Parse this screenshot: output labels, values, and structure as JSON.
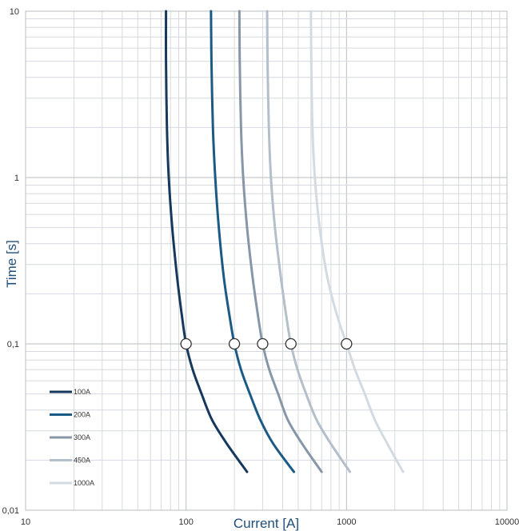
{
  "chart_data": {
    "type": "line",
    "xscale": "log",
    "yscale": "log",
    "xlabel": "Current [A]",
    "ylabel": "Time [s]",
    "xlim": [
      10,
      10000
    ],
    "ylim": [
      0.01,
      10
    ],
    "x_ticks": [
      {
        "value": 10,
        "label": "10"
      },
      {
        "value": 100,
        "label": "100"
      },
      {
        "value": 1000,
        "label": "1000"
      },
      {
        "value": 10000,
        "label": "10000"
      }
    ],
    "y_ticks": [
      {
        "value": 0.01,
        "label": "0,01"
      },
      {
        "value": 0.1,
        "label": "0,1"
      },
      {
        "value": 1,
        "label": "1"
      },
      {
        "value": 10,
        "label": "10"
      }
    ],
    "grid": true,
    "legend_position": "bottom-left",
    "series": [
      {
        "name": "100A",
        "color": "#15385c",
        "points": [
          [
            75,
            10
          ],
          [
            75,
            5
          ],
          [
            76,
            2
          ],
          [
            78,
            1
          ],
          [
            82,
            0.5
          ],
          [
            88,
            0.25
          ],
          [
            94,
            0.15
          ],
          [
            100,
            0.1
          ],
          [
            110,
            0.07
          ],
          [
            125,
            0.05
          ],
          [
            145,
            0.035
          ],
          [
            180,
            0.025
          ],
          [
            240,
            0.017
          ]
        ],
        "marker": [
          100,
          0.1
        ]
      },
      {
        "name": "200A",
        "color": "#1c5a86",
        "points": [
          [
            143,
            10
          ],
          [
            144,
            5
          ],
          [
            147,
            2
          ],
          [
            152,
            1
          ],
          [
            160,
            0.5
          ],
          [
            172,
            0.25
          ],
          [
            186,
            0.15
          ],
          [
            200,
            0.1
          ],
          [
            220,
            0.07
          ],
          [
            250,
            0.05
          ],
          [
            290,
            0.035
          ],
          [
            350,
            0.025
          ],
          [
            470,
            0.017
          ]
        ],
        "marker": [
          200,
          0.1
        ]
      },
      {
        "name": "300A",
        "color": "#8797a7",
        "points": [
          [
            215,
            10
          ],
          [
            216,
            5
          ],
          [
            220,
            2
          ],
          [
            227,
            1
          ],
          [
            240,
            0.5
          ],
          [
            260,
            0.25
          ],
          [
            280,
            0.15
          ],
          [
            300,
            0.1
          ],
          [
            330,
            0.07
          ],
          [
            375,
            0.05
          ],
          [
            430,
            0.035
          ],
          [
            530,
            0.025
          ],
          [
            700,
            0.017
          ]
        ],
        "marker": [
          300,
          0.1
        ]
      },
      {
        "name": "450A",
        "color": "#b3bfca",
        "points": [
          [
            320,
            10
          ],
          [
            322,
            5
          ],
          [
            328,
            2
          ],
          [
            338,
            1
          ],
          [
            358,
            0.5
          ],
          [
            390,
            0.25
          ],
          [
            420,
            0.15
          ],
          [
            450,
            0.1
          ],
          [
            495,
            0.07
          ],
          [
            560,
            0.05
          ],
          [
            650,
            0.035
          ],
          [
            800,
            0.025
          ],
          [
            1050,
            0.017
          ]
        ],
        "marker": [
          450,
          0.1
        ]
      },
      {
        "name": "1000A",
        "color": "#d3dbe2",
        "points": [
          [
            600,
            10
          ],
          [
            603,
            5
          ],
          [
            613,
            2
          ],
          [
            635,
            1
          ],
          [
            680,
            0.5
          ],
          [
            760,
            0.25
          ],
          [
            870,
            0.15
          ],
          [
            1000,
            0.1
          ],
          [
            1130,
            0.07
          ],
          [
            1300,
            0.05
          ],
          [
            1500,
            0.035
          ],
          [
            1800,
            0.025
          ],
          [
            2250,
            0.017
          ]
        ],
        "marker": [
          1000,
          0.1
        ]
      }
    ]
  }
}
